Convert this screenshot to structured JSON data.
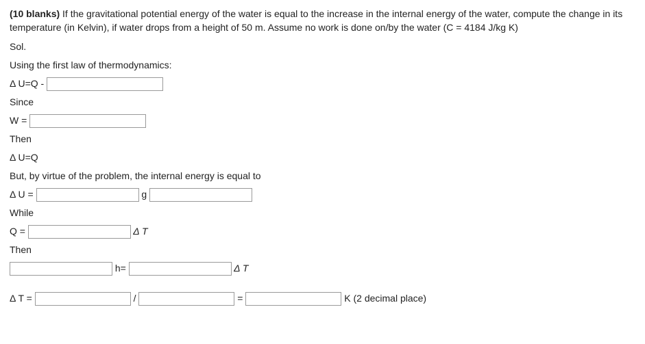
{
  "question": {
    "blanks_label": "(10 blanks)",
    "text": " If the gravitational potential energy of the water is equal to the increase in the internal energy of the water, compute the change in its temperature (in Kelvin), if water drops from a height of 50 m. Assume no work is done on/by the water (C = 4184 J/kg K)"
  },
  "lines": {
    "sol": "Sol.",
    "first_law": "Using the first law of thermodynamics:",
    "duq": "Δ U=Q - ",
    "since": "Since",
    "w_eq": "W = ",
    "then1": "Then",
    "duq2": "Δ U=Q",
    "but": "But, by virtue of the problem, the internal energy is equal to",
    "du_eq": "Δ U = ",
    "g": " g ",
    "while": "While",
    "q_eq": "Q = ",
    "dt": " Δ T",
    "then2": "Then",
    "h_eq": " h= ",
    "dt2": " Δ T",
    "dT_eq": "Δ T = ",
    "slash": " / ",
    "equals": " = ",
    "k_units": " K (2 decimal place)"
  }
}
